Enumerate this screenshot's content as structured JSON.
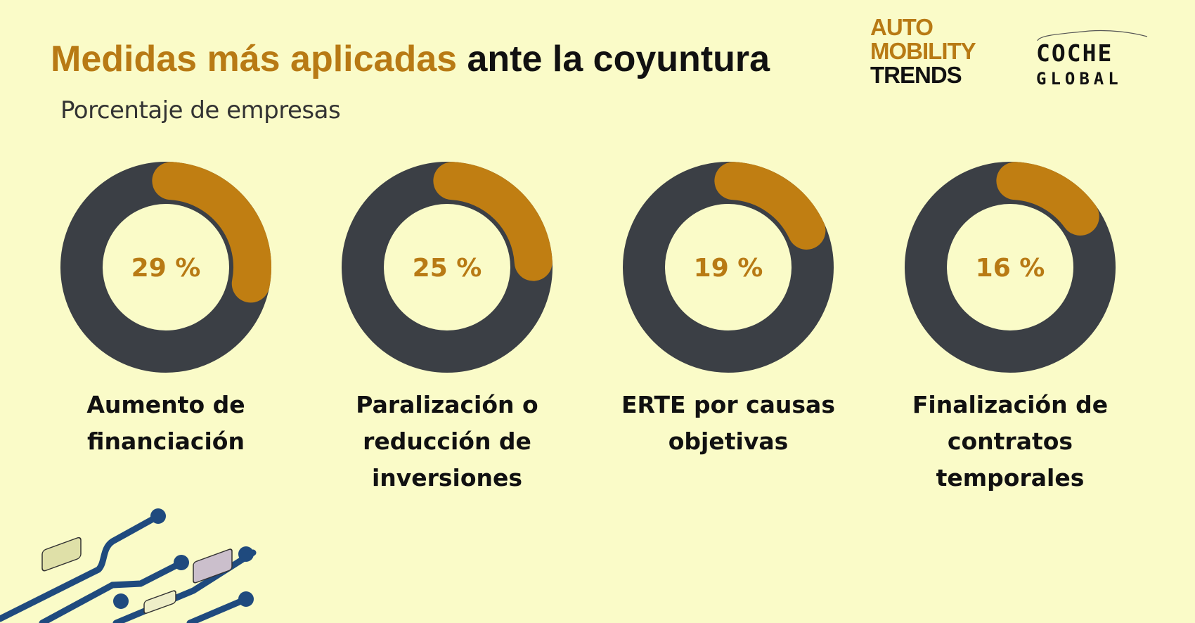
{
  "header": {
    "title_highlight": "Medidas más aplicadas",
    "title_rest": "ante la coyuntura",
    "subtitle": "Porcentaje de empresas"
  },
  "logos": {
    "auto_mobility": [
      "AUTO",
      "MOBILITY",
      "TRENDS"
    ],
    "coche_global": [
      "COCHE",
      "GLOBAL"
    ]
  },
  "chart_data": {
    "type": "donut",
    "title": "Medidas más aplicadas ante la coyuntura",
    "subtitle": "Porcentaje de empresas",
    "unit": "%",
    "categories": [
      "Aumento de financiación",
      "Paralización o reducción de inversiones",
      "ERTE por causas objetivas",
      "Finalización de contratos temporales"
    ],
    "values": [
      29,
      25,
      19,
      16
    ],
    "value_labels": [
      "29 %",
      "25 %",
      "19 %",
      "16 %"
    ],
    "label_lines": [
      [
        "Aumento de",
        "financiación"
      ],
      [
        "Paralización o",
        "reducción de",
        "inversiones"
      ],
      [
        "ERTE por causas",
        "objetivas"
      ],
      [
        "Finalización de",
        "contratos",
        "temporales"
      ]
    ],
    "colors": {
      "value": "#c07e12",
      "remainder": "#3b3f45",
      "value_text": "#b87a14"
    }
  }
}
